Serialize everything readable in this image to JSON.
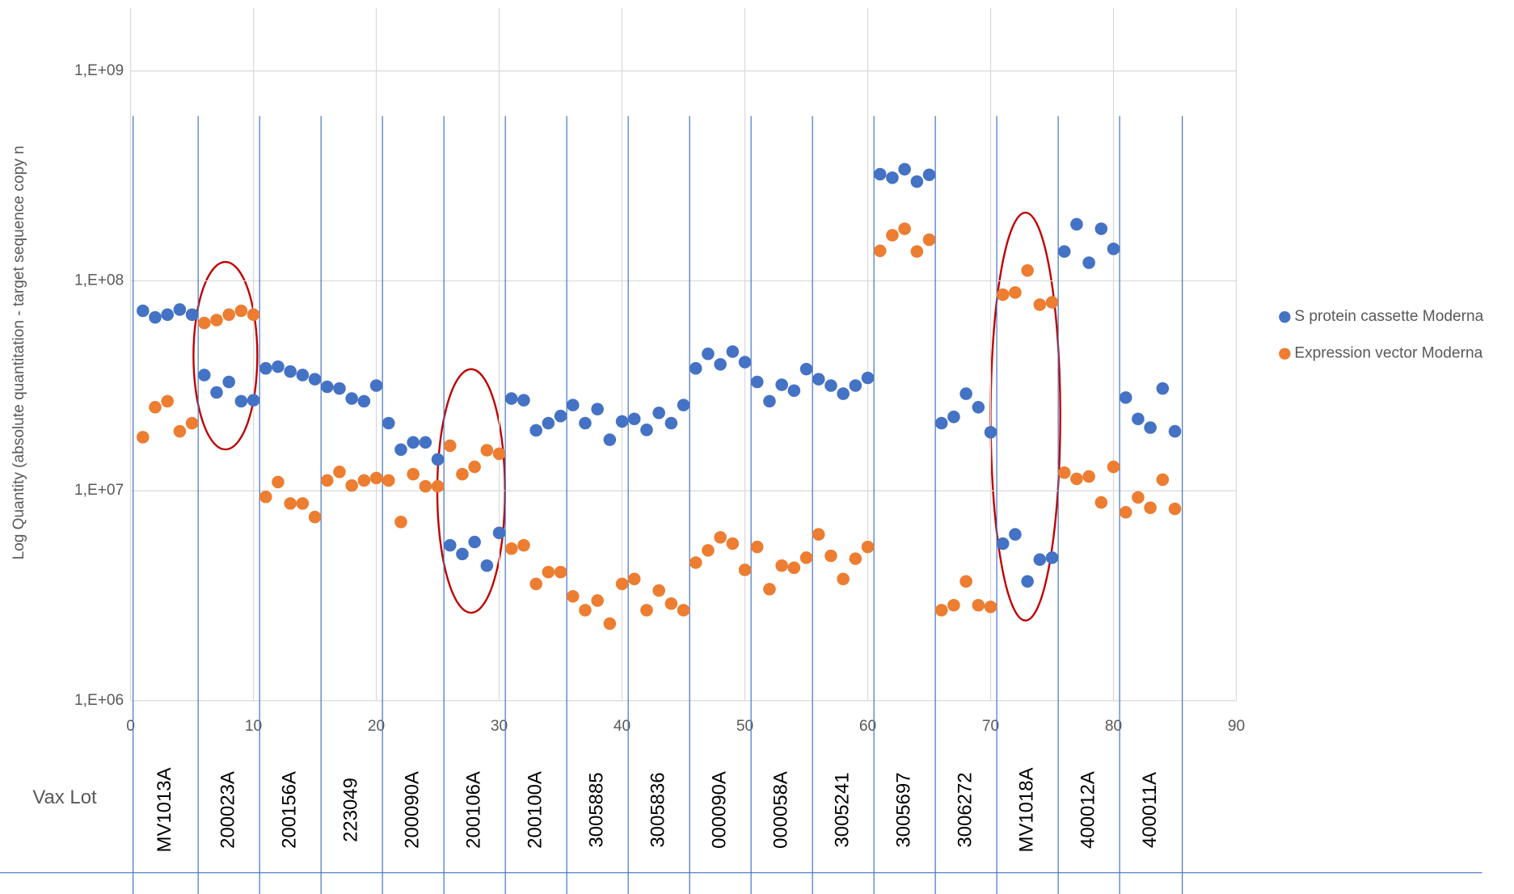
{
  "chart_data": {
    "type": "scatter",
    "y_label": "Log Quantity (absolute quantitation -  target sequence copy n",
    "lot_axis_label": "Vax Lot",
    "lots": [
      "MV1013A",
      "200023A",
      "200156A",
      "223049",
      "200090A",
      "200106A",
      "200100A",
      "3005885",
      "3005836",
      "000090A",
      "000058A",
      "3005241",
      "3005697",
      "3006272",
      "MV1018A",
      "400012A",
      "400011A"
    ],
    "log_y": true,
    "grid": true,
    "legend": "right",
    "xlim": [
      0,
      90
    ],
    "xticks": [
      0,
      10,
      20,
      30,
      40,
      50,
      60,
      70,
      80,
      90
    ],
    "ylim": [
      1000000,
      2000000000
    ],
    "yticks": [
      {
        "value": 1000000,
        "label": "1,E+06"
      },
      {
        "value": 10000000,
        "label": "1,E+07"
      },
      {
        "value": 100000000,
        "label": "1,E+08"
      },
      {
        "value": 1000000000,
        "label": "1,E+09"
      }
    ],
    "x": [
      1,
      2,
      3,
      4,
      5,
      6,
      7,
      8,
      9,
      10,
      11,
      12,
      13,
      14,
      15,
      16,
      17,
      18,
      19,
      20,
      21,
      22,
      23,
      24,
      25,
      26,
      27,
      28,
      29,
      30,
      31,
      32,
      33,
      34,
      35,
      36,
      37,
      38,
      39,
      40,
      41,
      42,
      43,
      44,
      45,
      46,
      47,
      48,
      49,
      50,
      51,
      52,
      53,
      54,
      55,
      56,
      57,
      58,
      59,
      60,
      61,
      62,
      63,
      64,
      65,
      66,
      67,
      68,
      69,
      70,
      71,
      72,
      73,
      74,
      75,
      76,
      77,
      78,
      79,
      80,
      81,
      82,
      83,
      84,
      85
    ],
    "series": [
      {
        "name": "S protein cassette Moderna",
        "color": "#4472c4",
        "values": [
          72000000,
          67000000,
          69000000,
          73000000,
          69000000,
          35600000,
          29400000,
          33000000,
          26700000,
          27000000,
          38300000,
          39000000,
          37000000,
          35600000,
          34000000,
          31300000,
          30700000,
          27500000,
          26700000,
          31700000,
          21000000,
          15700000,
          17000000,
          17000000,
          14100000,
          5500000,
          5000000,
          5700000,
          4400000,
          6300000,
          27500000,
          27000000,
          19400000,
          21000000,
          22700000,
          25600000,
          21000000,
          24500000,
          17500000,
          21400000,
          22000000,
          19500000,
          23500000,
          21000000,
          25600000,
          38300000,
          44900000,
          40000000,
          46000000,
          41000000,
          33000000,
          26700000,
          32000000,
          30000000,
          38000000,
          34000000,
          31700000,
          29000000,
          31700000,
          34500000,
          322000000,
          310000000,
          340000000,
          297000000,
          320000000,
          21000000,
          22500000,
          29000000,
          25000000,
          19000000,
          5600000,
          6200000,
          3700000,
          4700000,
          4800000,
          138000000,
          186000000,
          122000000,
          177000000,
          142000000,
          27800000,
          22000000,
          20000000,
          30700000,
          19200000
        ]
      },
      {
        "name": "Expression vector Moderna",
        "color": "#ed7d31",
        "values": [
          18000000,
          25000000,
          26700000,
          19200000,
          21000000,
          63000000,
          65000000,
          69000000,
          72000000,
          69000000,
          9350000,
          11000000,
          8700000,
          8700000,
          7500000,
          11200000,
          12300000,
          10600000,
          11200000,
          11500000,
          11200000,
          7100000,
          12000000,
          10500000,
          10500000,
          16400000,
          12000000,
          13000000,
          15600000,
          15000000,
          5300000,
          5500000,
          3600000,
          4100000,
          4100000,
          3140000,
          2700000,
          3000000,
          2330000,
          3600000,
          3800000,
          2700000,
          3350000,
          2900000,
          2700000,
          4550000,
          5200000,
          6000000,
          5600000,
          4200000,
          5400000,
          3400000,
          4400000,
          4300000,
          4800000,
          6200000,
          4900000,
          3800000,
          4750000,
          5400000,
          139000000,
          165000000,
          177000000,
          138000000,
          157000000,
          2700000,
          2850000,
          3700000,
          2850000,
          2800000,
          86000000,
          88000000,
          112000000,
          77000000,
          79000000,
          12200000,
          11400000,
          11700000,
          8800000,
          13000000,
          7900000,
          9300000,
          8300000,
          11300000,
          8200000
        ]
      }
    ]
  }
}
